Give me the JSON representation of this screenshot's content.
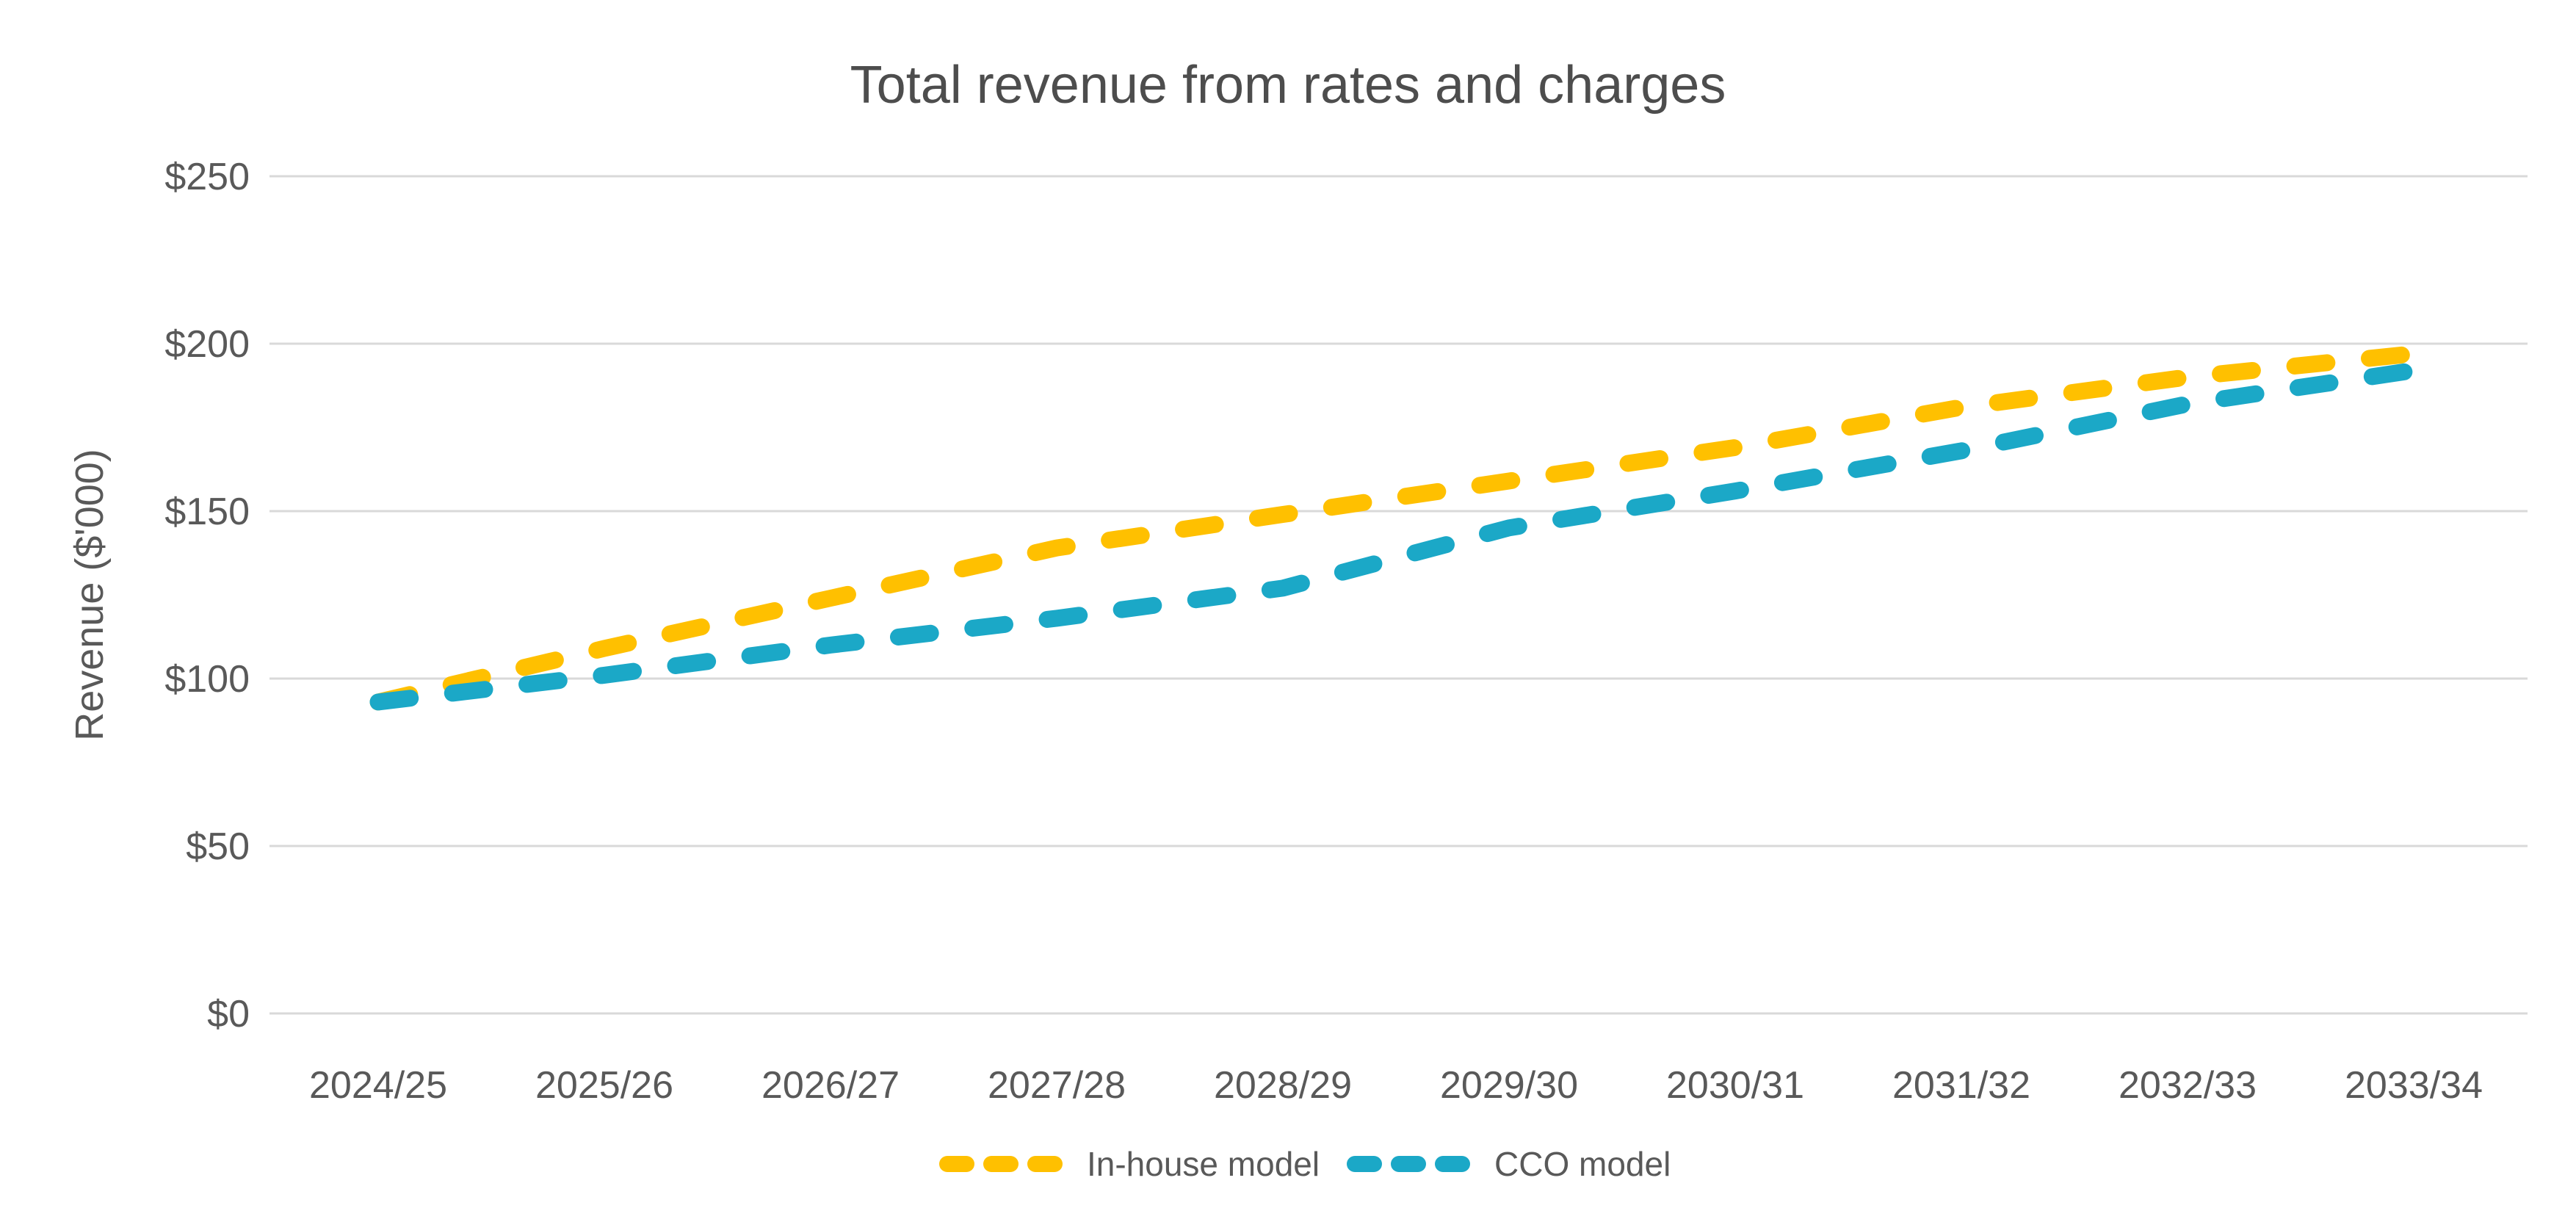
{
  "chart_data": {
    "type": "line",
    "title": "Total revenue from rates and charges",
    "xlabel": "",
    "ylabel": "Revenue ($'000)",
    "categories": [
      "2024/25",
      "2025/26",
      "2026/27",
      "2027/28",
      "2028/29",
      "2029/30",
      "2030/31",
      "2031/32",
      "2032/33",
      "2033/34"
    ],
    "series": [
      {
        "name": "In-house model",
        "color": "#FFC000",
        "style": "dashed",
        "values": [
          93,
          109,
          124,
          139,
          149,
          159,
          169,
          181,
          190,
          197
        ]
      },
      {
        "name": "CCO model",
        "color": "#1BA8C7",
        "style": "dashed",
        "values": [
          93,
          101,
          110,
          118,
          127,
          145,
          156,
          168,
          182,
          192
        ]
      }
    ],
    "ylim": [
      0,
      250
    ],
    "yticks": [
      0,
      50,
      100,
      150,
      200,
      250
    ],
    "ytick_labels": [
      "$0",
      "$50",
      "$100",
      "$150",
      "$200",
      "$250"
    ],
    "grid": "horizontal",
    "grid_color": "#D9D9D9",
    "text_color": "#595959",
    "legend_position": "bottom"
  }
}
